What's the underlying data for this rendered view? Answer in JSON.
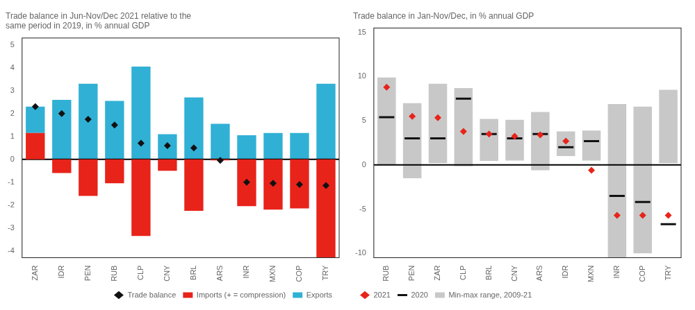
{
  "chart_data": [
    {
      "type": "bar",
      "title": "Trade balance in Jun-Nov/Dec 2021 relative to the\nsame period in 2019, in % annual GDP",
      "categories": [
        "ZAR",
        "IDR",
        "PEN",
        "RUB",
        "CLP",
        "CNY",
        "BRL",
        "ARS",
        "INR",
        "MXN",
        "COP",
        "TRY"
      ],
      "stacked": true,
      "grid": false,
      "legend": "lower right",
      "ylim": [
        -4.3,
        5.3
      ],
      "yticks": [
        -4,
        -3,
        -2,
        -1,
        0,
        1,
        2,
        3,
        4,
        5
      ],
      "series": [
        {
          "name": "Imports (+ = compression)",
          "type": "bar",
          "color": "#e8231a",
          "values": [
            1.15,
            -0.6,
            -1.6,
            -1.05,
            -3.35,
            -0.5,
            -2.25,
            -0.05,
            -2.05,
            -2.2,
            -2.15,
            -4.3
          ]
        },
        {
          "name": "Exports",
          "type": "bar",
          "color": "#31b0d5",
          "values": [
            1.15,
            2.6,
            3.3,
            2.55,
            4.05,
            1.1,
            2.7,
            1.55,
            1.05,
            1.15,
            1.15,
            3.3
          ]
        },
        {
          "name": "Trade balance",
          "type": "scatter",
          "marker": "diamond",
          "color": "#111111",
          "values": [
            2.3,
            2.0,
            1.75,
            1.5,
            0.7,
            0.6,
            0.5,
            -0.05,
            -1.0,
            -1.05,
            -1.1,
            -1.15
          ]
        }
      ]
    },
    {
      "type": "bar",
      "title": "Trade balance in Jan-Nov/Dec, in % annual GDP",
      "categories": [
        "RUB",
        "PEN",
        "ZAR",
        "CLP",
        "BRL",
        "CNY",
        "ARS",
        "IDR",
        "MXN",
        "INR",
        "COP",
        "TRY"
      ],
      "stacked": false,
      "grid": false,
      "legend": "lower left",
      "ylim": [
        -10.5,
        15.5
      ],
      "yticks": [
        -10,
        -5,
        0,
        5,
        10,
        15
      ],
      "series": [
        {
          "name": "Min-max range, 2009-21",
          "type": "bar",
          "color": "#c8c8c8",
          "low": [
            0.0,
            -1.5,
            0.2,
            -0.15,
            0.45,
            0.5,
            -0.6,
            1.0,
            0.5,
            -10.5,
            -10.0,
            0.2
          ],
          "high": [
            9.9,
            7.0,
            9.2,
            8.7,
            5.2,
            5.1,
            6.0,
            3.8,
            3.9,
            6.9,
            6.6,
            8.5
          ]
        },
        {
          "name": "2021",
          "type": "scatter",
          "marker": "diamond",
          "color": "#e8231a",
          "values": [
            8.8,
            5.5,
            5.35,
            3.8,
            3.5,
            3.25,
            3.4,
            2.7,
            -0.6,
            -5.7,
            -5.7,
            -5.7
          ]
        },
        {
          "name": "2020",
          "type": "scatter",
          "marker": "line",
          "color": "#111111",
          "values": [
            5.4,
            3.0,
            3.0,
            7.5,
            3.5,
            3.0,
            3.5,
            2.0,
            2.7,
            -3.5,
            -4.2,
            -6.7
          ]
        }
      ]
    }
  ]
}
